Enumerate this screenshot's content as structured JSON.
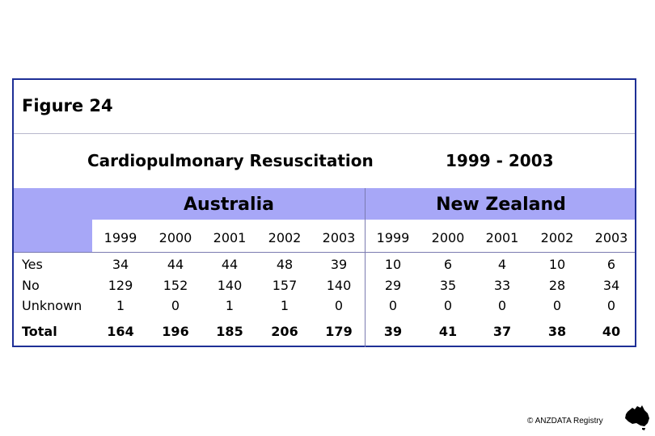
{
  "figure_label": "Figure 24",
  "chart_title": "Cardiopulmonary Resuscitation",
  "chart_period": "1999 - 2003",
  "regions": [
    "Australia",
    "New Zealand"
  ],
  "years": [
    "1999",
    "2000",
    "2001",
    "2002",
    "2003"
  ],
  "rows": [
    {
      "label": "Yes",
      "australia": [
        "34",
        "44",
        "44",
        "48",
        "39"
      ],
      "nz": [
        "10",
        "6",
        "4",
        "10",
        "6"
      ]
    },
    {
      "label": "No",
      "australia": [
        "129",
        "152",
        "140",
        "157",
        "140"
      ],
      "nz": [
        "29",
        "35",
        "33",
        "28",
        "34"
      ]
    },
    {
      "label": "Unknown",
      "australia": [
        "1",
        "0",
        "1",
        "1",
        "0"
      ],
      "nz": [
        "0",
        "0",
        "0",
        "0",
        "0"
      ]
    }
  ],
  "total": {
    "label": "Total",
    "australia": [
      "164",
      "196",
      "185",
      "206",
      "179"
    ],
    "nz": [
      "39",
      "41",
      "37",
      "38",
      "40"
    ]
  },
  "copyright": "© ANZDATA Registry",
  "colors": {
    "border": "#1e2f96",
    "band": "#a7a7f7"
  }
}
